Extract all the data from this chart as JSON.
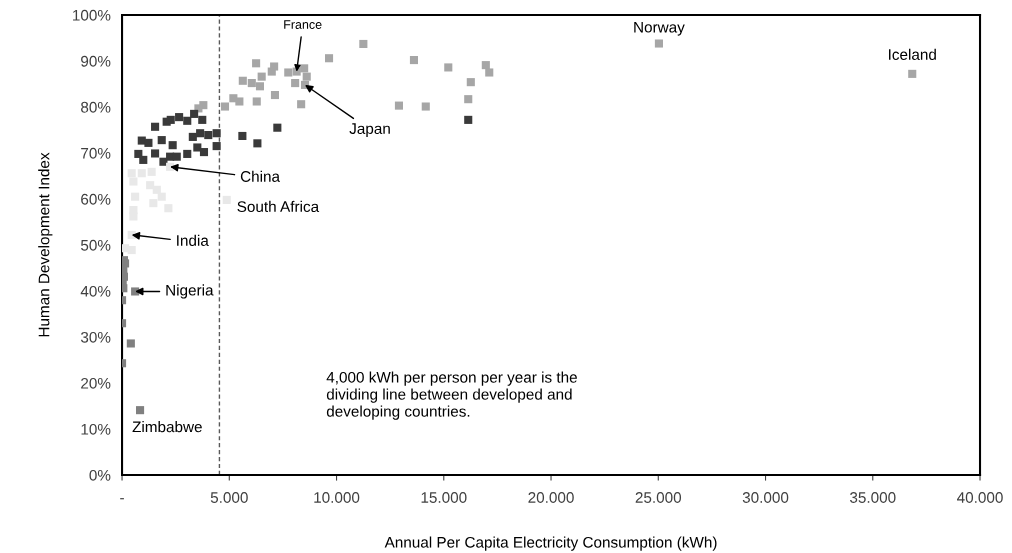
{
  "chart_data": {
    "type": "scatter",
    "xlabel": "Annual Per Capita Electricity Consumption (kWh)",
    "ylabel": "Human Development Index",
    "xlim": [
      0,
      40000
    ],
    "ylim": [
      0,
      100
    ],
    "xticks": [
      {
        "value": 0,
        "label": "-"
      },
      {
        "value": 5000,
        "label": "5.000"
      },
      {
        "value": 10000,
        "label": "10.000"
      },
      {
        "value": 15000,
        "label": "15.000"
      },
      {
        "value": 20000,
        "label": "20.000"
      },
      {
        "value": 25000,
        "label": "25.000"
      },
      {
        "value": 30000,
        "label": "30.000"
      },
      {
        "value": 35000,
        "label": "35.000"
      },
      {
        "value": 40000,
        "label": "40.000"
      }
    ],
    "yticks": [
      {
        "value": 0,
        "label": "0%"
      },
      {
        "value": 10,
        "label": "10%"
      },
      {
        "value": 20,
        "label": "20%"
      },
      {
        "value": 30,
        "label": "30%"
      },
      {
        "value": 40,
        "label": "40%"
      },
      {
        "value": 50,
        "label": "50%"
      },
      {
        "value": 60,
        "label": "60%"
      },
      {
        "value": 70,
        "label": "70%"
      },
      {
        "value": 80,
        "label": "80%"
      },
      {
        "value": 90,
        "label": "90%"
      },
      {
        "value": 100,
        "label": "100%"
      }
    ],
    "marker": "square",
    "grid": false,
    "series": [
      {
        "color": "#a6a6a6",
        "x": [
          3790,
          3560,
          4800,
          5190,
          5470,
          6280,
          7130,
          8350,
          5630,
          6050,
          6430,
          6510,
          6980,
          7090,
          6250,
          7750,
          8140,
          8490,
          8070,
          8530,
          8610,
          9650,
          11250,
          12910,
          13610,
          14160,
          15210,
          16260,
          16140,
          16960,
          17120,
          25030,
          36840
        ],
        "values": [
          80.4,
          79.7,
          80.1,
          81.9,
          81.2,
          81.2,
          82.6,
          80.6,
          85.7,
          85.2,
          84.5,
          86.6,
          87.7,
          88.8,
          89.5,
          87.5,
          87.7,
          88.4,
          85.2,
          84.8,
          86.6,
          90.6,
          93.7,
          80.3,
          90.2,
          80.1,
          88.6,
          85.4,
          81.7,
          89.1,
          87.5,
          93.8,
          87.2
        ]
      },
      {
        "color": "#3a3a3a",
        "x": [
          1540,
          2080,
          2270,
          2660,
          3040,
          3360,
          3740,
          920,
          1230,
          1850,
          2360,
          3300,
          3640,
          4020,
          4410,
          760,
          990,
          1540,
          1930,
          2240,
          2550,
          3040,
          3510,
          3820,
          4410,
          5610,
          6310,
          7240,
          16140
        ],
        "values": [
          75.7,
          76.8,
          77.2,
          77.8,
          77.0,
          78.5,
          77.2,
          72.7,
          72.2,
          72.8,
          71.7,
          73.5,
          74.3,
          73.9,
          74.3,
          69.8,
          68.5,
          69.9,
          68.1,
          69.2,
          69.2,
          69.8,
          71.2,
          70.2,
          71.5,
          73.7,
          72.1,
          75.5,
          77.2
        ]
      },
      {
        "color": "#e8e8e8",
        "x": [
          450,
          920,
          1380,
          2240,
          530,
          1310,
          1620,
          610,
          1460,
          2160,
          1850,
          4880,
          530,
          530,
          450,
          140,
          450
        ],
        "values": [
          65.6,
          65.6,
          65.9,
          67.0,
          63.8,
          63.0,
          62.0,
          60.5,
          59.1,
          58.0,
          60.5,
          59.8,
          57.6,
          56.2,
          52.2,
          49.3,
          48.9
        ]
      },
      {
        "color": "#808080",
        "x": [
          90,
          140,
          60,
          90,
          30,
          60,
          610,
          0,
          0,
          410,
          0,
          840
        ],
        "values": [
          46.7,
          46.0,
          44.6,
          43.1,
          42.0,
          40.6,
          39.9,
          38.0,
          33.0,
          28.6,
          24.3,
          14.1
        ]
      }
    ],
    "ref_lines": [
      {
        "axis": "x",
        "value": 4540,
        "color": "#595959",
        "line_style": "dashed"
      }
    ],
    "annotations": [
      {
        "text": "France",
        "x": 8140,
        "y": 87.7
      },
      {
        "text": "Japan",
        "x": 8530,
        "y": 84.8
      },
      {
        "text": "China",
        "x": 2240,
        "y": 67.0
      },
      {
        "text": "India",
        "x": 450,
        "y": 52.2
      },
      {
        "text": "Nigeria",
        "x": 610,
        "y": 39.9
      },
      {
        "text": "Norway",
        "x": 25030,
        "y": 93.8
      },
      {
        "text": "Iceland",
        "x": 36840,
        "y": 87.2
      },
      {
        "text": "South Africa",
        "x": 4880,
        "y": 59.8
      },
      {
        "text": "Zimbabwe",
        "x": 840,
        "y": 14.1
      },
      "4,000 kWh per person per year is the\ndividing line between developed and\ndeveloping countries."
    ]
  }
}
